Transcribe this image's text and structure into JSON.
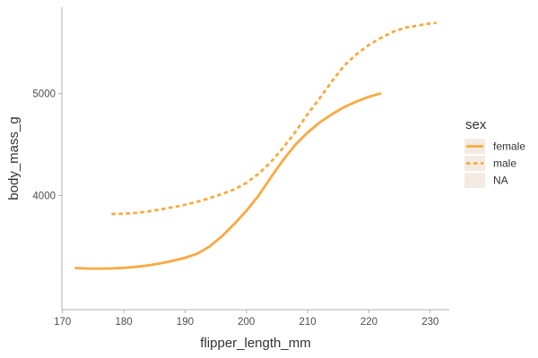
{
  "chart_data": {
    "type": "line",
    "xlabel": "flipper_length_mm",
    "ylabel": "body_mass_g",
    "xlim": [
      169.9,
      233.1
    ],
    "ylim": [
      2880,
      5850
    ],
    "x_ticks": [
      170,
      180,
      190,
      200,
      210,
      220,
      230
    ],
    "y_ticks": [
      4000,
      5000
    ],
    "grid": false,
    "legend": {
      "title": "sex",
      "position": "right",
      "entries": [
        "female",
        "male",
        "NA"
      ]
    },
    "series": [
      {
        "name": "female",
        "color": "#F9A940",
        "line_style": "solid",
        "x": [
          172,
          174,
          176,
          178,
          180,
          182,
          184,
          186,
          188,
          190,
          192,
          194,
          196,
          198,
          200,
          202,
          204,
          206,
          208,
          210,
          212,
          214,
          216,
          218,
          220,
          222
        ],
        "y": [
          3289,
          3284,
          3283,
          3285,
          3290,
          3300,
          3315,
          3335,
          3360,
          3390,
          3430,
          3500,
          3600,
          3720,
          3850,
          4000,
          4180,
          4350,
          4500,
          4620,
          4720,
          4800,
          4870,
          4925,
          4970,
          5005
        ]
      },
      {
        "name": "male",
        "color": "#F9A940",
        "line_style": "dashed",
        "x": [
          178,
          180,
          182,
          184,
          186,
          188,
          190,
          192,
          194,
          196,
          198,
          200,
          202,
          204,
          206,
          208,
          210,
          212,
          214,
          216,
          218,
          220,
          222,
          224,
          226,
          228,
          230,
          231
        ],
        "y": [
          3820,
          3822,
          3830,
          3845,
          3865,
          3885,
          3910,
          3940,
          3975,
          4015,
          4060,
          4125,
          4215,
          4330,
          4470,
          4625,
          4800,
          4960,
          5125,
          5280,
          5390,
          5480,
          5550,
          5610,
          5650,
          5670,
          5690,
          5695
        ]
      }
    ]
  }
}
